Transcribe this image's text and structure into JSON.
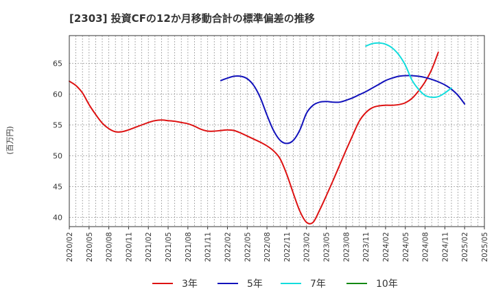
{
  "chart_data": {
    "type": "line",
    "title": "[2303]  投資CFの12か月移動合計の標準偏差の推移",
    "ylabel": "(百万円)",
    "xlabel": "",
    "ylim": [
      38.5,
      69.5
    ],
    "yticks": [
      40,
      45,
      50,
      55,
      60,
      65
    ],
    "x_range": [
      "2020-02",
      "2025-05"
    ],
    "xticks": [
      "2020/02",
      "2020/05",
      "2020/08",
      "2020/11",
      "2021/02",
      "2021/05",
      "2021/08",
      "2021/11",
      "2022/02",
      "2022/05",
      "2022/08",
      "2022/11",
      "2023/02",
      "2023/05",
      "2023/08",
      "2023/11",
      "2024/02",
      "2024/05",
      "2024/08",
      "2024/11",
      "2025/02",
      "2025/05"
    ],
    "grid": true,
    "legend_position": "bottom",
    "series": [
      {
        "name": "3年",
        "color": "#dd1111",
        "points": [
          [
            "2020-02",
            62.1
          ],
          [
            "2020-03",
            61.4
          ],
          [
            "2020-04",
            60.2
          ],
          [
            "2020-05",
            58.3
          ],
          [
            "2020-06",
            56.7
          ],
          [
            "2020-07",
            55.3
          ],
          [
            "2020-08",
            54.4
          ],
          [
            "2020-09",
            53.9
          ],
          [
            "2020-10",
            53.9
          ],
          [
            "2020-11",
            54.2
          ],
          [
            "2020-12",
            54.6
          ],
          [
            "2021-01",
            55.0
          ],
          [
            "2021-02",
            55.4
          ],
          [
            "2021-03",
            55.7
          ],
          [
            "2021-04",
            55.8
          ],
          [
            "2021-05",
            55.7
          ],
          [
            "2021-06",
            55.6
          ],
          [
            "2021-07",
            55.4
          ],
          [
            "2021-08",
            55.2
          ],
          [
            "2021-09",
            54.8
          ],
          [
            "2021-10",
            54.3
          ],
          [
            "2021-11",
            54.0
          ],
          [
            "2021-12",
            54.0
          ],
          [
            "2022-01",
            54.1
          ],
          [
            "2022-02",
            54.2
          ],
          [
            "2022-03",
            54.1
          ],
          [
            "2022-04",
            53.7
          ],
          [
            "2022-05",
            53.2
          ],
          [
            "2022-06",
            52.7
          ],
          [
            "2022-07",
            52.2
          ],
          [
            "2022-08",
            51.6
          ],
          [
            "2022-09",
            50.8
          ],
          [
            "2022-10",
            49.5
          ],
          [
            "2022-11",
            47.0
          ],
          [
            "2022-12",
            43.9
          ],
          [
            "2023-01",
            41.0
          ],
          [
            "2023-02",
            39.2
          ],
          [
            "2023-03",
            39.2
          ],
          [
            "2023-04",
            41.2
          ],
          [
            "2023-05",
            43.5
          ],
          [
            "2023-06",
            45.9
          ],
          [
            "2023-07",
            48.4
          ],
          [
            "2023-08",
            50.9
          ],
          [
            "2023-09",
            53.3
          ],
          [
            "2023-10",
            55.6
          ],
          [
            "2023-11",
            57.0
          ],
          [
            "2023-12",
            57.8
          ],
          [
            "2024-01",
            58.1
          ],
          [
            "2024-02",
            58.2
          ],
          [
            "2024-03",
            58.2
          ],
          [
            "2024-04",
            58.3
          ],
          [
            "2024-05",
            58.6
          ],
          [
            "2024-06",
            59.3
          ],
          [
            "2024-07",
            60.5
          ],
          [
            "2024-08",
            62.0
          ],
          [
            "2024-09",
            64.0
          ],
          [
            "2024-10",
            66.8
          ]
        ]
      },
      {
        "name": "5年",
        "color": "#1111bb",
        "points": [
          [
            "2022-01",
            62.2
          ],
          [
            "2022-02",
            62.6
          ],
          [
            "2022-03",
            62.9
          ],
          [
            "2022-04",
            62.9
          ],
          [
            "2022-05",
            62.5
          ],
          [
            "2022-06",
            61.4
          ],
          [
            "2022-07",
            59.4
          ],
          [
            "2022-08",
            56.6
          ],
          [
            "2022-09",
            54.1
          ],
          [
            "2022-10",
            52.5
          ],
          [
            "2022-11",
            52.0
          ],
          [
            "2022-12",
            52.5
          ],
          [
            "2023-01",
            54.2
          ],
          [
            "2023-02",
            56.9
          ],
          [
            "2023-03",
            58.2
          ],
          [
            "2023-04",
            58.7
          ],
          [
            "2023-05",
            58.8
          ],
          [
            "2023-06",
            58.7
          ],
          [
            "2023-07",
            58.7
          ],
          [
            "2023-08",
            59.0
          ],
          [
            "2023-09",
            59.4
          ],
          [
            "2023-10",
            59.9
          ],
          [
            "2023-11",
            60.4
          ],
          [
            "2023-12",
            61.0
          ],
          [
            "2024-01",
            61.6
          ],
          [
            "2024-02",
            62.2
          ],
          [
            "2024-03",
            62.6
          ],
          [
            "2024-04",
            62.9
          ],
          [
            "2024-05",
            63.0
          ],
          [
            "2024-06",
            63.0
          ],
          [
            "2024-07",
            62.9
          ],
          [
            "2024-08",
            62.7
          ],
          [
            "2024-09",
            62.4
          ],
          [
            "2024-10",
            62.0
          ],
          [
            "2024-11",
            61.5
          ],
          [
            "2024-12",
            60.8
          ],
          [
            "2025-01",
            59.8
          ],
          [
            "2025-02",
            58.4
          ]
        ]
      },
      {
        "name": "7年",
        "color": "#11dddd",
        "points": [
          [
            "2023-11",
            67.8
          ],
          [
            "2023-12",
            68.2
          ],
          [
            "2024-01",
            68.3
          ],
          [
            "2024-02",
            68.1
          ],
          [
            "2024-03",
            67.5
          ],
          [
            "2024-04",
            66.4
          ],
          [
            "2024-05",
            64.7
          ],
          [
            "2024-06",
            62.3
          ],
          [
            "2024-07",
            60.8
          ],
          [
            "2024-08",
            59.8
          ],
          [
            "2024-09",
            59.5
          ],
          [
            "2024-10",
            59.6
          ],
          [
            "2024-11",
            60.2
          ],
          [
            "2024-12",
            61.0
          ]
        ]
      },
      {
        "name": "10年",
        "color": "#118811",
        "points": []
      }
    ]
  }
}
